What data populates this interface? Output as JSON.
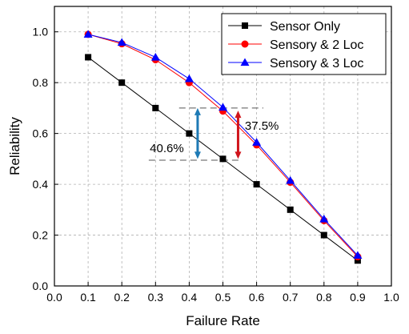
{
  "chart_data": {
    "type": "line",
    "xlabel": "Failure Rate",
    "ylabel": "Reliability",
    "xlim": [
      0.0,
      1.0
    ],
    "ylim": [
      0.0,
      1.1
    ],
    "xticks": [
      "0.0",
      "0.1",
      "0.2",
      "0.3",
      "0.4",
      "0.5",
      "0.6",
      "0.7",
      "0.8",
      "0.9",
      "1.0"
    ],
    "yticks": [
      "0.0",
      "0.2",
      "0.4",
      "0.6",
      "0.8",
      "1.0"
    ],
    "grid": true,
    "legend_position": "top-right",
    "x": [
      0.1,
      0.2,
      0.3,
      0.4,
      0.5,
      0.6,
      0.7,
      0.8,
      0.9
    ],
    "series": [
      {
        "name": "Sensor Only",
        "color": "#000000",
        "marker": "square",
        "values": [
          0.9,
          0.8,
          0.7,
          0.6,
          0.5,
          0.4,
          0.3,
          0.2,
          0.1
        ]
      },
      {
        "name": "Sensory & 2 Loc",
        "color": "#ff0000",
        "marker": "circle",
        "values": [
          0.99,
          0.953,
          0.89,
          0.8,
          0.688,
          0.555,
          0.408,
          0.257,
          0.115
        ]
      },
      {
        "name": "Sensory & 3 Loc",
        "color": "#0000ff",
        "marker": "triangle",
        "values": [
          0.99,
          0.958,
          0.9,
          0.815,
          0.703,
          0.565,
          0.415,
          0.263,
          0.12
        ]
      }
    ],
    "annotations": [
      {
        "text": "40.6%",
        "color": "#1e7ab5",
        "arrow_x": 0.425,
        "arrow_y": [
          0.5,
          0.7
        ],
        "ref_line_y": 0.495,
        "ref_line_x": [
          0.28,
          0.55
        ]
      },
      {
        "text": "37.5%",
        "color": "#d0141c",
        "arrow_x": 0.545,
        "arrow_y": [
          0.5,
          0.69
        ],
        "ref_line_y": 0.7,
        "ref_line_x": [
          0.37,
          0.62
        ]
      }
    ]
  }
}
